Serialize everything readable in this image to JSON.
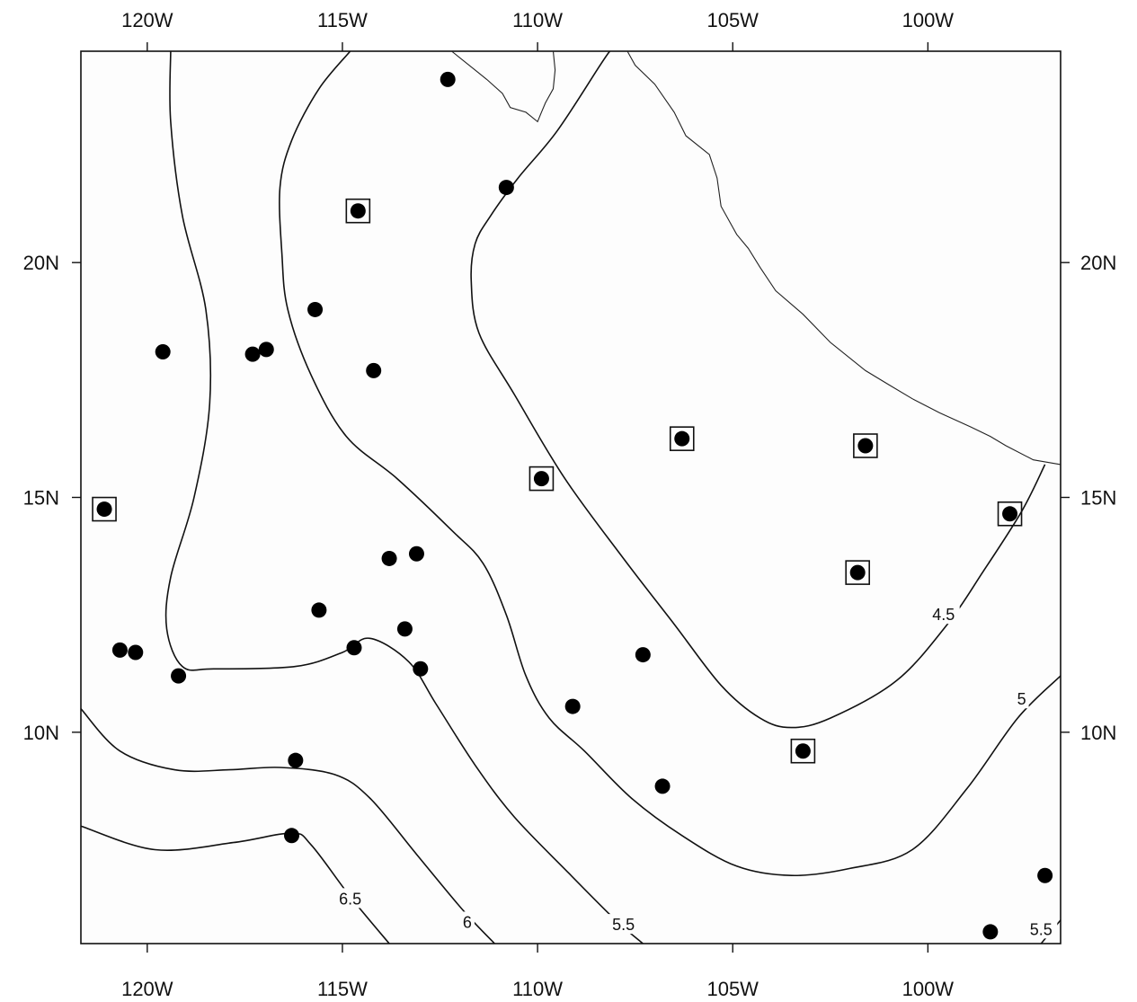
{
  "map": {
    "lon_range": [
      -121.7,
      -96.6
    ],
    "lat_range": [
      5.5,
      24.5
    ],
    "x_ticks": [
      {
        "value": -120,
        "label": "120W"
      },
      {
        "value": -115,
        "label": "115W"
      },
      {
        "value": -110,
        "label": "110W"
      },
      {
        "value": -105,
        "label": "105W"
      },
      {
        "value": -100,
        "label": "100W"
      }
    ],
    "y_ticks": [
      {
        "value": 20,
        "label": "20N"
      },
      {
        "value": 15,
        "label": "15N"
      },
      {
        "value": 10,
        "label": "10N"
      }
    ],
    "contour_labels": [
      {
        "text": "4.5",
        "lon": -99.6,
        "lat": 12.5
      },
      {
        "text": "5",
        "lon": -97.6,
        "lat": 10.7
      },
      {
        "text": "5.5",
        "lon": -107.8,
        "lat": 5.9
      },
      {
        "text": "5.5",
        "lon": -97.1,
        "lat": 5.8
      },
      {
        "text": "6",
        "lon": -111.8,
        "lat": 5.95
      },
      {
        "text": "6.5",
        "lon": -114.8,
        "lat": 6.45
      }
    ],
    "stations_plain": [
      {
        "lon": -112.3,
        "lat": 23.9
      },
      {
        "lon": -110.8,
        "lat": 21.6
      },
      {
        "lon": -115.7,
        "lat": 19.0
      },
      {
        "lon": -119.6,
        "lat": 18.1
      },
      {
        "lon": -117.3,
        "lat": 18.05
      },
      {
        "lon": -116.95,
        "lat": 18.15
      },
      {
        "lon": -114.2,
        "lat": 17.7
      },
      {
        "lon": -113.8,
        "lat": 13.7
      },
      {
        "lon": -113.1,
        "lat": 13.8
      },
      {
        "lon": -115.6,
        "lat": 12.6
      },
      {
        "lon": -113.4,
        "lat": 12.2
      },
      {
        "lon": -114.7,
        "lat": 11.8
      },
      {
        "lon": -113.0,
        "lat": 11.35
      },
      {
        "lon": -120.7,
        "lat": 11.75
      },
      {
        "lon": -120.3,
        "lat": 11.7
      },
      {
        "lon": -119.2,
        "lat": 11.2
      },
      {
        "lon": -107.3,
        "lat": 11.65
      },
      {
        "lon": -109.1,
        "lat": 10.55
      },
      {
        "lon": -116.2,
        "lat": 9.4
      },
      {
        "lon": -106.8,
        "lat": 8.85
      },
      {
        "lon": -116.3,
        "lat": 7.8
      },
      {
        "lon": -97.0,
        "lat": 6.95
      },
      {
        "lon": -98.4,
        "lat": 5.75
      }
    ],
    "stations_boxed": [
      {
        "lon": -114.6,
        "lat": 21.1
      },
      {
        "lon": -109.9,
        "lat": 15.4
      },
      {
        "lon": -106.3,
        "lat": 16.25
      },
      {
        "lon": -101.6,
        "lat": 16.1
      },
      {
        "lon": -101.8,
        "lat": 13.4
      },
      {
        "lon": -97.9,
        "lat": 14.65
      },
      {
        "lon": -121.1,
        "lat": 14.75
      },
      {
        "lon": -103.2,
        "lat": 9.6
      }
    ],
    "contours": [
      {
        "level": "4.5",
        "points": [
          [
            -97.0,
            15.7
          ],
          [
            -97.6,
            14.7
          ],
          [
            -98.6,
            13.4
          ],
          [
            -99.5,
            12.3
          ],
          [
            -100.8,
            11.1
          ],
          [
            -102.5,
            10.3
          ],
          [
            -103.5,
            10.1
          ],
          [
            -104.3,
            10.3
          ],
          [
            -105.3,
            11.0
          ],
          [
            -106.5,
            12.3
          ],
          [
            -107.8,
            13.7
          ],
          [
            -109.3,
            15.4
          ],
          [
            -110.6,
            17.2
          ],
          [
            -111.5,
            18.5
          ],
          [
            -111.7,
            19.6
          ],
          [
            -111.6,
            20.4
          ],
          [
            -111.2,
            21.0
          ],
          [
            -110.5,
            21.8
          ],
          [
            -109.5,
            22.8
          ],
          [
            -108.4,
            24.2
          ],
          [
            -108.15,
            24.5
          ]
        ]
      },
      {
        "level": "5",
        "points": [
          [
            -96.6,
            11.2
          ],
          [
            -97.7,
            10.3
          ],
          [
            -99.0,
            8.8
          ],
          [
            -100.4,
            7.5
          ],
          [
            -102.0,
            7.1
          ],
          [
            -103.5,
            6.95
          ],
          [
            -104.9,
            7.15
          ],
          [
            -106.3,
            7.8
          ],
          [
            -107.6,
            8.6
          ],
          [
            -108.8,
            9.6
          ],
          [
            -109.7,
            10.3
          ],
          [
            -110.3,
            11.2
          ],
          [
            -110.8,
            12.5
          ],
          [
            -111.4,
            13.6
          ],
          [
            -112.2,
            14.3
          ],
          [
            -113.6,
            15.4
          ],
          [
            -114.9,
            16.3
          ],
          [
            -115.8,
            17.6
          ],
          [
            -116.4,
            19.0
          ],
          [
            -116.55,
            20.2
          ],
          [
            -116.6,
            21.6
          ],
          [
            -116.3,
            22.6
          ],
          [
            -115.6,
            23.7
          ],
          [
            -114.8,
            24.5
          ]
        ]
      },
      {
        "level": "5.5",
        "points": [
          [
            -107.3,
            5.5
          ],
          [
            -108.0,
            6.0
          ],
          [
            -109.2,
            7.0
          ],
          [
            -110.6,
            8.2
          ],
          [
            -111.6,
            9.3
          ],
          [
            -112.6,
            10.6
          ],
          [
            -113.3,
            11.5
          ],
          [
            -114.3,
            12.0
          ],
          [
            -115.0,
            11.7
          ],
          [
            -116.2,
            11.4
          ],
          [
            -118.3,
            11.35
          ],
          [
            -119.1,
            11.4
          ],
          [
            -119.5,
            12.2
          ],
          [
            -119.4,
            13.3
          ],
          [
            -118.8,
            15.0
          ],
          [
            -118.4,
            17.0
          ],
          [
            -118.5,
            19.0
          ],
          [
            -119.1,
            21.0
          ],
          [
            -119.4,
            23.0
          ],
          [
            -119.4,
            24.5
          ]
        ]
      },
      {
        "level": "5.5",
        "points": [
          [
            -96.6,
            6.0
          ],
          [
            -97.1,
            5.5
          ]
        ]
      },
      {
        "level": "6",
        "points": [
          [
            -111.1,
            5.5
          ],
          [
            -111.9,
            6.2
          ],
          [
            -113.1,
            7.4
          ],
          [
            -114.3,
            8.6
          ],
          [
            -115.2,
            9.1
          ],
          [
            -116.6,
            9.25
          ],
          [
            -117.9,
            9.2
          ],
          [
            -119.3,
            9.2
          ],
          [
            -120.7,
            9.6
          ],
          [
            -121.7,
            10.5
          ]
        ]
      },
      {
        "level": "6.5",
        "points": [
          [
            -113.8,
            5.5
          ],
          [
            -114.8,
            6.5
          ],
          [
            -115.8,
            7.6
          ],
          [
            -116.3,
            7.85
          ],
          [
            -117.8,
            7.65
          ],
          [
            -119.8,
            7.5
          ],
          [
            -121.7,
            8.0
          ]
        ]
      }
    ],
    "coastlines": [
      {
        "name": "baja-gulf-coast",
        "points": [
          [
            -112.2,
            24.5
          ],
          [
            -111.6,
            24.1
          ],
          [
            -111.3,
            23.9
          ],
          [
            -110.9,
            23.6
          ],
          [
            -110.7,
            23.3
          ],
          [
            -110.3,
            23.2
          ],
          [
            -110.0,
            23.0
          ],
          [
            -109.9,
            23.2
          ],
          [
            -109.8,
            23.4
          ],
          [
            -109.6,
            23.7
          ],
          [
            -109.55,
            24.1
          ],
          [
            -109.6,
            24.5
          ]
        ]
      },
      {
        "name": "mainland-coast",
        "points": [
          [
            -107.7,
            24.5
          ],
          [
            -107.5,
            24.2
          ],
          [
            -107.0,
            23.8
          ],
          [
            -106.5,
            23.2
          ],
          [
            -106.2,
            22.7
          ],
          [
            -105.6,
            22.3
          ],
          [
            -105.4,
            21.8
          ],
          [
            -105.3,
            21.2
          ],
          [
            -104.9,
            20.6
          ],
          [
            -104.6,
            20.3
          ],
          [
            -104.3,
            19.9
          ],
          [
            -103.9,
            19.4
          ],
          [
            -103.2,
            18.9
          ],
          [
            -102.5,
            18.3
          ],
          [
            -101.6,
            17.7
          ],
          [
            -101.0,
            17.4
          ],
          [
            -100.4,
            17.1
          ],
          [
            -99.7,
            16.8
          ],
          [
            -98.9,
            16.5
          ],
          [
            -98.4,
            16.3
          ],
          [
            -98.0,
            16.1
          ],
          [
            -97.3,
            15.8
          ],
          [
            -96.6,
            15.7
          ]
        ]
      }
    ]
  }
}
